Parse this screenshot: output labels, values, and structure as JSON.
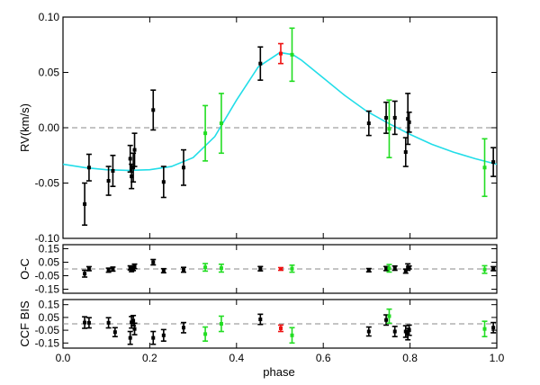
{
  "chart_data": {
    "type": "scatter",
    "xlabel": "phase",
    "xlim": [
      0.0,
      1.0
    ],
    "xticks": [
      "0.0",
      "0.2",
      "0.4",
      "0.6",
      "0.8",
      "1.0"
    ],
    "colors": {
      "black": "#000000",
      "green": "#22dd22",
      "red": "#ee1111",
      "model": "#22dde8",
      "zero_line": "#888888"
    },
    "panels": [
      {
        "id": "rv",
        "ylabel": "RV(km/s)",
        "ylim": [
          -0.1,
          0.1
        ],
        "yticks": [
          "0.10",
          "0.05",
          "0.00",
          "-0.05",
          "-0.10"
        ],
        "model_curve": {
          "name": "",
          "x": [
            0.0,
            0.05,
            0.1,
            0.15,
            0.2,
            0.25,
            0.3,
            0.35,
            0.4,
            0.45,
            0.5,
            0.53,
            0.55,
            0.6,
            0.65,
            0.7,
            0.75,
            0.8,
            0.85,
            0.9,
            0.95,
            1.0
          ],
          "y": [
            -0.033,
            -0.036,
            -0.038,
            -0.0385,
            -0.038,
            -0.035,
            -0.027,
            -0.008,
            0.025,
            0.055,
            0.068,
            0.066,
            0.061,
            0.045,
            0.029,
            0.015,
            0.004,
            -0.006,
            -0.015,
            -0.022,
            -0.028,
            -0.033
          ]
        },
        "points": [
          {
            "x": 0.05,
            "y": -0.069,
            "err": 0.019,
            "color": "black"
          },
          {
            "x": 0.06,
            "y": -0.036,
            "err": 0.012,
            "color": "black"
          },
          {
            "x": 0.105,
            "y": -0.048,
            "err": 0.013,
            "color": "black"
          },
          {
            "x": 0.115,
            "y": -0.039,
            "err": 0.014,
            "color": "black"
          },
          {
            "x": 0.155,
            "y": -0.028,
            "err": 0.012,
            "color": "black"
          },
          {
            "x": 0.158,
            "y": -0.044,
            "err": 0.011,
            "color": "black"
          },
          {
            "x": 0.162,
            "y": -0.036,
            "err": 0.013,
            "color": "black"
          },
          {
            "x": 0.165,
            "y": -0.02,
            "err": 0.015,
            "color": "black"
          },
          {
            "x": 0.208,
            "y": 0.016,
            "err": 0.018,
            "color": "black"
          },
          {
            "x": 0.232,
            "y": -0.049,
            "err": 0.014,
            "color": "black"
          },
          {
            "x": 0.278,
            "y": -0.036,
            "err": 0.016,
            "color": "black"
          },
          {
            "x": 0.328,
            "y": -0.005,
            "err": 0.025,
            "color": "green"
          },
          {
            "x": 0.365,
            "y": 0.004,
            "err": 0.027,
            "color": "green"
          },
          {
            "x": 0.455,
            "y": 0.058,
            "err": 0.015,
            "color": "black"
          },
          {
            "x": 0.502,
            "y": 0.067,
            "err": 0.009,
            "color": "red"
          },
          {
            "x": 0.528,
            "y": 0.066,
            "err": 0.024,
            "color": "green"
          },
          {
            "x": 0.705,
            "y": 0.004,
            "err": 0.011,
            "color": "black"
          },
          {
            "x": 0.745,
            "y": 0.009,
            "err": 0.014,
            "color": "black"
          },
          {
            "x": 0.752,
            "y": -0.001,
            "err": 0.026,
            "color": "green"
          },
          {
            "x": 0.765,
            "y": 0.009,
            "err": 0.015,
            "color": "black"
          },
          {
            "x": 0.79,
            "y": -0.022,
            "err": 0.013,
            "color": "black"
          },
          {
            "x": 0.795,
            "y": 0.008,
            "err": 0.023,
            "color": "black"
          },
          {
            "x": 0.798,
            "y": 0.005,
            "err": 0.009,
            "color": "black"
          },
          {
            "x": 0.972,
            "y": -0.036,
            "err": 0.026,
            "color": "green"
          },
          {
            "x": 0.992,
            "y": -0.031,
            "err": 0.013,
            "color": "black"
          }
        ]
      },
      {
        "id": "oc",
        "ylabel": "O-C",
        "ylim": [
          -0.18,
          0.18
        ],
        "yticks": [
          "0.15",
          "0.05",
          "-0.05",
          "-0.15"
        ],
        "points": [
          {
            "x": 0.05,
            "y": -0.035,
            "err": 0.025,
            "color": "black"
          },
          {
            "x": 0.06,
            "y": 0.002,
            "err": 0.015,
            "color": "black"
          },
          {
            "x": 0.105,
            "y": -0.009,
            "err": 0.015,
            "color": "black"
          },
          {
            "x": 0.115,
            "y": -0.001,
            "err": 0.015,
            "color": "black"
          },
          {
            "x": 0.155,
            "y": 0.008,
            "err": 0.015,
            "color": "black"
          },
          {
            "x": 0.158,
            "y": -0.006,
            "err": 0.014,
            "color": "black"
          },
          {
            "x": 0.162,
            "y": 0.003,
            "err": 0.015,
            "color": "black"
          },
          {
            "x": 0.165,
            "y": 0.019,
            "err": 0.017,
            "color": "black"
          },
          {
            "x": 0.208,
            "y": 0.05,
            "err": 0.02,
            "color": "black"
          },
          {
            "x": 0.232,
            "y": -0.013,
            "err": 0.015,
            "color": "black"
          },
          {
            "x": 0.278,
            "y": -0.006,
            "err": 0.018,
            "color": "black"
          },
          {
            "x": 0.328,
            "y": 0.012,
            "err": 0.028,
            "color": "green"
          },
          {
            "x": 0.365,
            "y": 0.006,
            "err": 0.029,
            "color": "green"
          },
          {
            "x": 0.455,
            "y": 0.002,
            "err": 0.016,
            "color": "black"
          },
          {
            "x": 0.502,
            "y": 0.0,
            "err": 0.01,
            "color": "red"
          },
          {
            "x": 0.528,
            "y": 0.002,
            "err": 0.026,
            "color": "green"
          },
          {
            "x": 0.705,
            "y": -0.009,
            "err": 0.012,
            "color": "black"
          },
          {
            "x": 0.745,
            "y": 0.003,
            "err": 0.015,
            "color": "black"
          },
          {
            "x": 0.752,
            "y": 0.005,
            "err": 0.028,
            "color": "green"
          },
          {
            "x": 0.765,
            "y": 0.006,
            "err": 0.016,
            "color": "black"
          },
          {
            "x": 0.79,
            "y": -0.016,
            "err": 0.015,
            "color": "black"
          },
          {
            "x": 0.795,
            "y": 0.014,
            "err": 0.024,
            "color": "black"
          },
          {
            "x": 0.798,
            "y": 0.011,
            "err": 0.011,
            "color": "black"
          },
          {
            "x": 0.972,
            "y": -0.004,
            "err": 0.028,
            "color": "green"
          },
          {
            "x": 0.992,
            "y": 0.002,
            "err": 0.015,
            "color": "black"
          }
        ]
      },
      {
        "id": "bis",
        "ylabel": "CCF BIS",
        "ylim": [
          -0.19,
          0.19
        ],
        "yticks": [
          "0.15",
          "0.05",
          "-0.05",
          "-0.15"
        ],
        "points": [
          {
            "x": 0.05,
            "y": 0.01,
            "err": 0.045,
            "color": "black"
          },
          {
            "x": 0.06,
            "y": 0.008,
            "err": 0.04,
            "color": "black"
          },
          {
            "x": 0.105,
            "y": 0.008,
            "err": 0.04,
            "color": "black"
          },
          {
            "x": 0.12,
            "y": -0.065,
            "err": 0.035,
            "color": "black"
          },
          {
            "x": 0.155,
            "y": -0.11,
            "err": 0.05,
            "color": "black"
          },
          {
            "x": 0.158,
            "y": 0.012,
            "err": 0.045,
            "color": "black"
          },
          {
            "x": 0.162,
            "y": 0.025,
            "err": 0.04,
            "color": "black"
          },
          {
            "x": 0.165,
            "y": -0.04,
            "err": 0.045,
            "color": "black"
          },
          {
            "x": 0.208,
            "y": -0.11,
            "err": 0.05,
            "color": "black"
          },
          {
            "x": 0.232,
            "y": -0.09,
            "err": 0.045,
            "color": "black"
          },
          {
            "x": 0.278,
            "y": -0.03,
            "err": 0.04,
            "color": "black"
          },
          {
            "x": 0.328,
            "y": -0.08,
            "err": 0.055,
            "color": "green"
          },
          {
            "x": 0.365,
            "y": 0.0,
            "err": 0.06,
            "color": "green"
          },
          {
            "x": 0.455,
            "y": 0.035,
            "err": 0.04,
            "color": "black"
          },
          {
            "x": 0.502,
            "y": -0.035,
            "err": 0.025,
            "color": "red"
          },
          {
            "x": 0.528,
            "y": -0.09,
            "err": 0.06,
            "color": "green"
          },
          {
            "x": 0.705,
            "y": -0.06,
            "err": 0.035,
            "color": "black"
          },
          {
            "x": 0.745,
            "y": 0.03,
            "err": 0.04,
            "color": "black"
          },
          {
            "x": 0.752,
            "y": 0.06,
            "err": 0.055,
            "color": "green"
          },
          {
            "x": 0.765,
            "y": -0.06,
            "err": 0.04,
            "color": "black"
          },
          {
            "x": 0.79,
            "y": -0.06,
            "err": 0.045,
            "color": "black"
          },
          {
            "x": 0.795,
            "y": -0.08,
            "err": 0.045,
            "color": "black"
          },
          {
            "x": 0.798,
            "y": -0.05,
            "err": 0.04,
            "color": "black"
          },
          {
            "x": 0.972,
            "y": -0.04,
            "err": 0.06,
            "color": "green"
          },
          {
            "x": 0.992,
            "y": -0.03,
            "err": 0.04,
            "color": "black"
          }
        ]
      }
    ]
  }
}
